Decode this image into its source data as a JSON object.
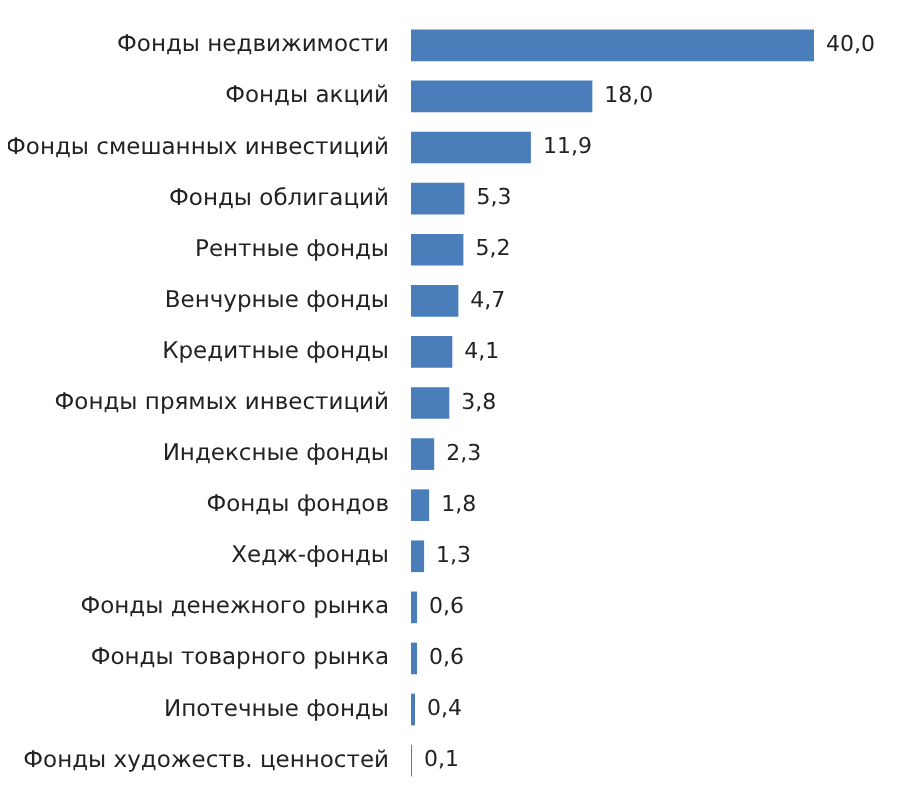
{
  "chart_data": {
    "type": "bar",
    "orientation": "horizontal",
    "categories": [
      "Фонды недвижимости",
      "Фонды акций",
      "Фонды смешанных инвестиций",
      "Фонды облигаций",
      "Рентные фонды",
      "Венчурные фонды",
      "Кредитные фонды",
      "Фонды прямых инвестиций",
      "Индексные фонды",
      "Фонды фондов",
      "Хедж-фонды",
      "Фонды денежного рынка",
      "Фонды товарного рынка",
      "Ипотечные фонды",
      "Фонды художеств. ценностей"
    ],
    "values": [
      40.0,
      18.0,
      11.9,
      5.3,
      5.2,
      4.7,
      4.1,
      3.8,
      2.3,
      1.8,
      1.3,
      0.6,
      0.6,
      0.4,
      0.1
    ],
    "value_labels": [
      "40,0",
      "18,0",
      "11,9",
      "5,3",
      "5,2",
      "4,7",
      "4,1",
      "3,8",
      "2,3",
      "1,8",
      "1,3",
      "0,6",
      "0,6",
      "0,4",
      "0,1"
    ],
    "color": "#4a7ebb"
  }
}
